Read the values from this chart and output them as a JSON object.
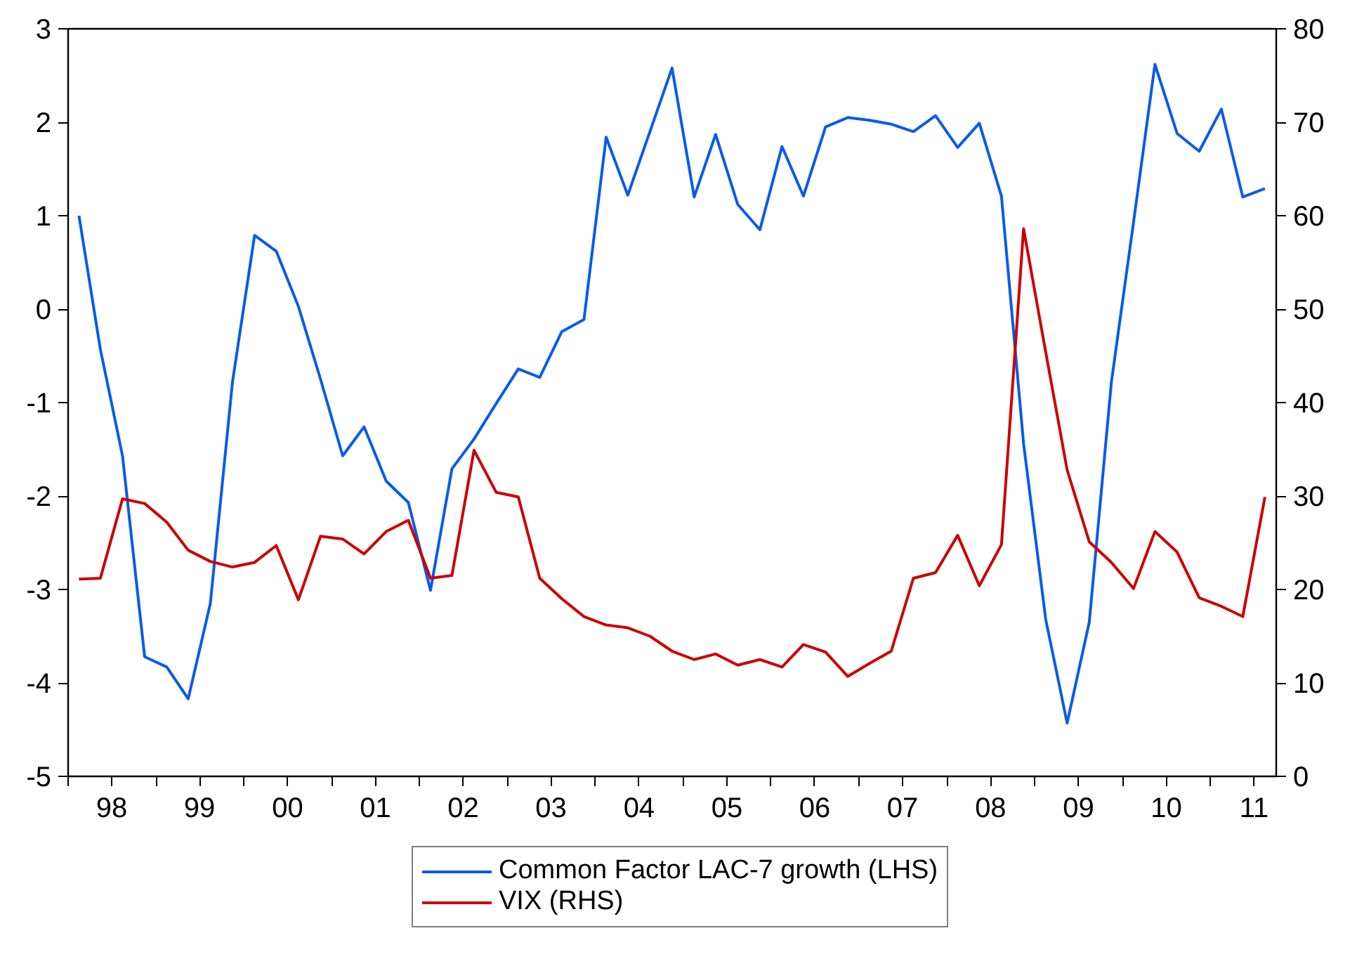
{
  "chart_data": {
    "type": "line",
    "x": [
      "1998-02-15",
      "1998-05-15",
      "1998-08-15",
      "1998-11-15",
      "1999-02-15",
      "1999-05-15",
      "1999-08-15",
      "1999-11-15",
      "2000-02-15",
      "2000-05-15",
      "2000-08-15",
      "2000-11-15",
      "2001-02-15",
      "2001-05-15",
      "2001-08-15",
      "2001-11-15",
      "2002-02-15",
      "2002-05-15",
      "2002-08-15",
      "2002-11-15",
      "2003-02-15",
      "2003-05-15",
      "2003-08-15",
      "2003-11-15",
      "2004-02-15",
      "2004-05-15",
      "2004-08-15",
      "2004-11-15",
      "2005-02-15",
      "2005-05-15",
      "2005-08-15",
      "2005-11-15",
      "2006-02-15",
      "2006-05-15",
      "2006-08-15",
      "2006-11-15",
      "2007-02-15",
      "2007-05-15",
      "2007-08-15",
      "2007-11-15",
      "2008-02-15",
      "2008-05-15",
      "2008-08-15",
      "2008-11-15",
      "2009-02-15",
      "2009-05-15",
      "2009-08-15",
      "2009-11-15",
      "2010-02-15",
      "2010-05-15",
      "2010-08-15",
      "2010-11-15",
      "2011-02-15",
      "2011-05-15",
      "2011-08-15"
    ],
    "series": [
      {
        "name": "Common Factor LAC-7 growth (LHS)",
        "color": "#0a5be8",
        "values": [
          1.0,
          -0.43,
          -1.57,
          -3.72,
          -3.83,
          -4.17,
          -3.15,
          -0.78,
          0.79,
          0.62,
          0.03,
          -0.75,
          -1.57,
          -1.26,
          -1.84,
          -2.07,
          -3.01,
          -1.71,
          -1.39,
          -1.01,
          -0.64,
          -0.73,
          -0.24,
          -0.11,
          1.84,
          1.22,
          1.9,
          2.58,
          1.2,
          1.87,
          1.12,
          0.85,
          1.74,
          1.21,
          1.95,
          2.05,
          2.02,
          1.98,
          1.9,
          2.07,
          1.73,
          1.99,
          1.21,
          -1.44,
          -3.32,
          -4.43,
          -3.35,
          -0.78,
          0.93,
          2.62,
          1.88,
          1.69,
          2.14,
          1.2,
          1.29
        ]
      },
      {
        "name": "VIX (RHS)",
        "color": "#cc0000",
        "axis": "y2",
        "values": [
          21.1,
          21.2,
          29.7,
          29.2,
          27.2,
          24.2,
          23.0,
          22.4,
          22.9,
          24.7,
          18.9,
          25.7,
          25.4,
          23.8,
          26.2,
          27.4,
          21.2,
          21.5,
          34.9,
          30.4,
          29.9,
          21.2,
          19.0,
          17.1,
          16.2,
          15.9,
          15.0,
          13.4,
          12.5,
          13.1,
          11.9,
          12.5,
          11.7,
          14.1,
          13.3,
          10.7,
          12.1,
          13.4,
          21.2,
          21.8,
          25.8,
          20.4,
          24.8,
          58.6,
          45.4,
          32.8,
          25.1,
          22.9,
          20.1,
          26.2,
          24.0,
          19.1,
          18.2,
          17.1,
          29.9
        ]
      }
    ],
    "xlim": [
      "1998-01-01",
      "2011-10-01"
    ],
    "xticks": [
      {
        "value": "1998-01-01",
        "label": null
      },
      {
        "value": "1998-07-01",
        "label": "98"
      },
      {
        "value": "1999-01-01",
        "label": null
      },
      {
        "value": "1999-07-01",
        "label": "99"
      },
      {
        "value": "2000-01-01",
        "label": null
      },
      {
        "value": "2000-07-01",
        "label": "00"
      },
      {
        "value": "2001-01-01",
        "label": null
      },
      {
        "value": "2001-07-01",
        "label": "01"
      },
      {
        "value": "2002-01-01",
        "label": null
      },
      {
        "value": "2002-07-01",
        "label": "02"
      },
      {
        "value": "2003-01-01",
        "label": null
      },
      {
        "value": "2003-07-01",
        "label": "03"
      },
      {
        "value": "2004-01-01",
        "label": null
      },
      {
        "value": "2004-07-01",
        "label": "04"
      },
      {
        "value": "2005-01-01",
        "label": null
      },
      {
        "value": "2005-07-01",
        "label": "05"
      },
      {
        "value": "2006-01-01",
        "label": null
      },
      {
        "value": "2006-07-01",
        "label": "06"
      },
      {
        "value": "2007-01-01",
        "label": null
      },
      {
        "value": "2007-07-01",
        "label": "07"
      },
      {
        "value": "2008-01-01",
        "label": null
      },
      {
        "value": "2008-07-01",
        "label": "08"
      },
      {
        "value": "2009-01-01",
        "label": null
      },
      {
        "value": "2009-07-01",
        "label": "09"
      },
      {
        "value": "2010-01-01",
        "label": null
      },
      {
        "value": "2010-07-01",
        "label": "10"
      },
      {
        "value": "2011-01-01",
        "label": null
      },
      {
        "value": "2011-07-01",
        "label": "11"
      }
    ],
    "ylim": [
      -5,
      3
    ],
    "yticks": [
      -5,
      -4,
      -3,
      -2,
      -1,
      0,
      1,
      2,
      3
    ],
    "y2lim": [
      0,
      80
    ],
    "y2ticks": [
      0,
      10,
      20,
      30,
      40,
      50,
      60,
      70,
      80
    ],
    "grid": false,
    "legend": "bottom",
    "line_style": "solid",
    "marker": "none"
  }
}
